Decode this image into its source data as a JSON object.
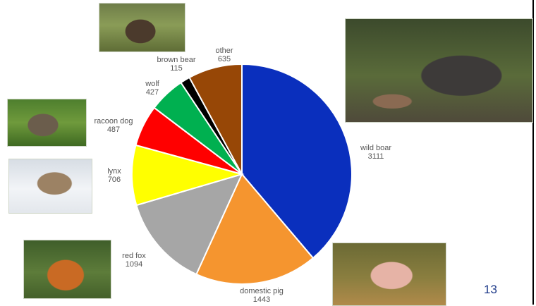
{
  "chart_data": {
    "type": "pie",
    "start_angle_deg": 0,
    "direction": "clockwise",
    "slices": [
      {
        "label": "wild boar",
        "value": 3111,
        "color": "#0a2fbd"
      },
      {
        "label": "domestic pig",
        "value": 1443,
        "color": "#f5952f"
      },
      {
        "label": "red fox",
        "value": 1094,
        "color": "#a6a6a6"
      },
      {
        "label": "lynx",
        "value": 706,
        "color": "#ffff00"
      },
      {
        "label": "racoon dog",
        "value": 487,
        "color": "#ff0000"
      },
      {
        "label": "wolf",
        "value": 427,
        "color": "#00b050"
      },
      {
        "label": "brown bear",
        "value": 115,
        "color": "#000000"
      },
      {
        "label": "other",
        "value": 635,
        "color": "#974706"
      }
    ]
  },
  "page_number": "13",
  "photos": [
    {
      "id": "bear",
      "icon": "brown-bear-photo"
    },
    {
      "id": "boar",
      "icon": "wild-boar-photo"
    },
    {
      "id": "racoon",
      "icon": "racoon-dog-photo"
    },
    {
      "id": "lynx",
      "icon": "lynx-photo"
    },
    {
      "id": "fox",
      "icon": "red-fox-photo"
    },
    {
      "id": "pig",
      "icon": "domestic-pig-photo"
    }
  ]
}
